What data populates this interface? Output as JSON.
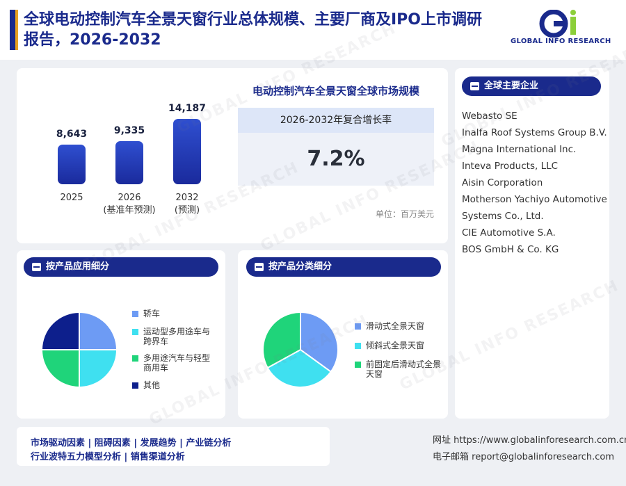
{
  "header": {
    "title": "全球电动控制汽车全景天窗行业总体规模、主要厂商及IPO上市调研报告，2026-2032",
    "logo_text": "GLOBAL INFO RESEARCH"
  },
  "market": {
    "title": "电动控制汽车全景天窗全球市场规模",
    "cagr_label": "2026-2032年复合增长率",
    "cagr_value": "7.2%",
    "unit": "单位：百万美元"
  },
  "chart_data": [
    {
      "type": "bar",
      "categories": [
        "2025",
        "2026",
        "2032"
      ],
      "category_notes": [
        "",
        "(基准年预测)",
        "(预测)"
      ],
      "values": [
        8643,
        9335,
        14187
      ],
      "value_labels": [
        "8,643",
        "9,335",
        "14,187"
      ]
    },
    {
      "type": "pie",
      "title": "按产品应用细分",
      "labels": [
        "轿车",
        "运动型多用途车与跨界车",
        "多用途汽车与轻型商用车",
        "其他"
      ],
      "values": [
        25,
        25,
        25,
        25
      ],
      "colors": [
        "#6d9bf4",
        "#3fe0f0",
        "#1fd47a",
        "#0d1f8c"
      ]
    },
    {
      "type": "pie",
      "title": "按产品分类细分",
      "labels": [
        "滑动式全景天窗",
        "倾斜式全景天窗",
        "前固定后滑动式全景天窗"
      ],
      "values": [
        35,
        32,
        33
      ],
      "colors": [
        "#6d9bf4",
        "#3fe0f0",
        "#1fd47a"
      ]
    }
  ],
  "companies": {
    "title": "全球主要企业",
    "items": [
      "Webasto SE",
      "Inalfa Roof Systems Group B.V.",
      "Magna International Inc.",
      "Inteva Products, LLC",
      "Aisin Corporation",
      "Motherson Yachiyo Automotive Systems Co., Ltd.",
      "CIE Automotive S.A.",
      "BOS GmbH & Co. KG"
    ]
  },
  "segments": {
    "application_title": "按产品应用细分",
    "type_title": "按产品分类细分"
  },
  "footer": {
    "line1": "市场驱动因素 | 阻碍因素 | 发展趋势 | 产业链分析",
    "line2": "行业波特五力模型分析 | 销售渠道分析",
    "website": "网址 https://www.globalinforesearch.com.cn",
    "email": "电子邮箱 report@globalinforesearch.com"
  },
  "watermark": "GLOBAL INFO RESEARCH"
}
